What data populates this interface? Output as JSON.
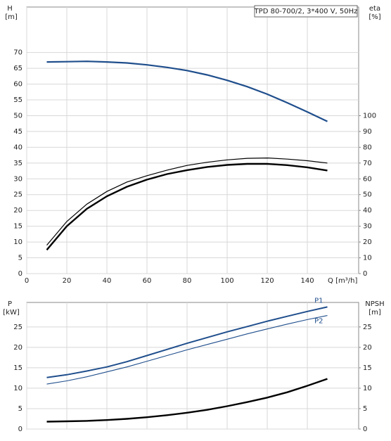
{
  "chart_data": [
    {
      "type": "line",
      "title": "TPD 80-700/2, 3*400 V, 50Hz",
      "y_label": "H",
      "y_unit": "[m]",
      "y2_label": "eta",
      "y2_unit": "[%]",
      "x_label": "Q [m³/h]",
      "x": [
        10,
        20,
        30,
        40,
        50,
        60,
        70,
        80,
        90,
        100,
        110,
        120,
        130,
        140,
        150
      ],
      "series": [
        {
          "color": "#1f4e8c",
          "width": 2.2,
          "values": [
            67,
            67.1,
            67.2,
            67,
            66.7,
            66.1,
            65.3,
            64.3,
            62.9,
            61.2,
            59.2,
            56.8,
            54.1,
            51.2,
            48.2
          ]
        },
        {
          "color": "#000000",
          "width": 1.2,
          "axis": "y2",
          "values": [
            18,
            33,
            44,
            52,
            58,
            62,
            65.5,
            68.5,
            70.5,
            72,
            73,
            73.2,
            72.5,
            71.5,
            70
          ]
        },
        {
          "color": "#000000",
          "width": 2.4,
          "axis": "y2",
          "values": [
            15,
            30,
            41,
            49,
            55,
            59.5,
            63,
            65.5,
            67.5,
            68.8,
            69.5,
            69.5,
            68.7,
            67.3,
            65.3
          ]
        }
      ],
      "xlim": [
        0,
        165.6
      ],
      "xticks": [
        0,
        20,
        40,
        60,
        80,
        100,
        120,
        140
      ],
      "show_xtick_labels": true,
      "ylim": [
        0,
        84.4
      ],
      "yticks": [
        0,
        5,
        10,
        15,
        20,
        25,
        30,
        35,
        40,
        45,
        50,
        55,
        60,
        65,
        70
      ],
      "y2lim": [
        0,
        168.8
      ],
      "y2ticks": [
        0,
        10,
        20,
        30,
        40,
        50,
        60,
        70,
        80,
        90,
        100
      ],
      "grid": true
    },
    {
      "type": "line",
      "y_label": "P",
      "y_unit": "[kW]",
      "y2_label": "NPSH",
      "y2_unit": "[m]",
      "x": [
        10,
        20,
        30,
        40,
        50,
        60,
        70,
        80,
        90,
        100,
        110,
        120,
        130,
        140,
        150
      ],
      "series": [
        {
          "name": "P1",
          "color": "#1f4e8c",
          "width": 2,
          "values": [
            12.6,
            13.3,
            14.2,
            15.2,
            16.5,
            18,
            19.5,
            21,
            22.4,
            23.8,
            25.1,
            26.4,
            27.6,
            28.8,
            29.9
          ]
        },
        {
          "name": "P2",
          "color": "#1f4e8c",
          "width": 1.1,
          "values": [
            11,
            11.8,
            12.8,
            14,
            15.2,
            16.6,
            18,
            19.4,
            20.7,
            22,
            23.3,
            24.5,
            25.7,
            26.8,
            27.8
          ]
        },
        {
          "color": "#000000",
          "width": 2.4,
          "axis": "y2",
          "values": [
            1.8,
            1.9,
            2,
            2.2,
            2.5,
            2.9,
            3.4,
            4,
            4.7,
            5.6,
            6.6,
            7.7,
            9,
            10.6,
            12.3
          ]
        }
      ],
      "xlim": [
        0,
        165.6
      ],
      "xticks": [
        0,
        20,
        40,
        60,
        80,
        100,
        120,
        140
      ],
      "show_xtick_labels": false,
      "ylim": [
        0,
        31
      ],
      "yticks": [
        0,
        5,
        10,
        15,
        20,
        25
      ],
      "y2lim": [
        0,
        31
      ],
      "y2ticks": [
        0,
        5,
        10,
        15,
        20,
        25
      ],
      "grid": true
    }
  ]
}
